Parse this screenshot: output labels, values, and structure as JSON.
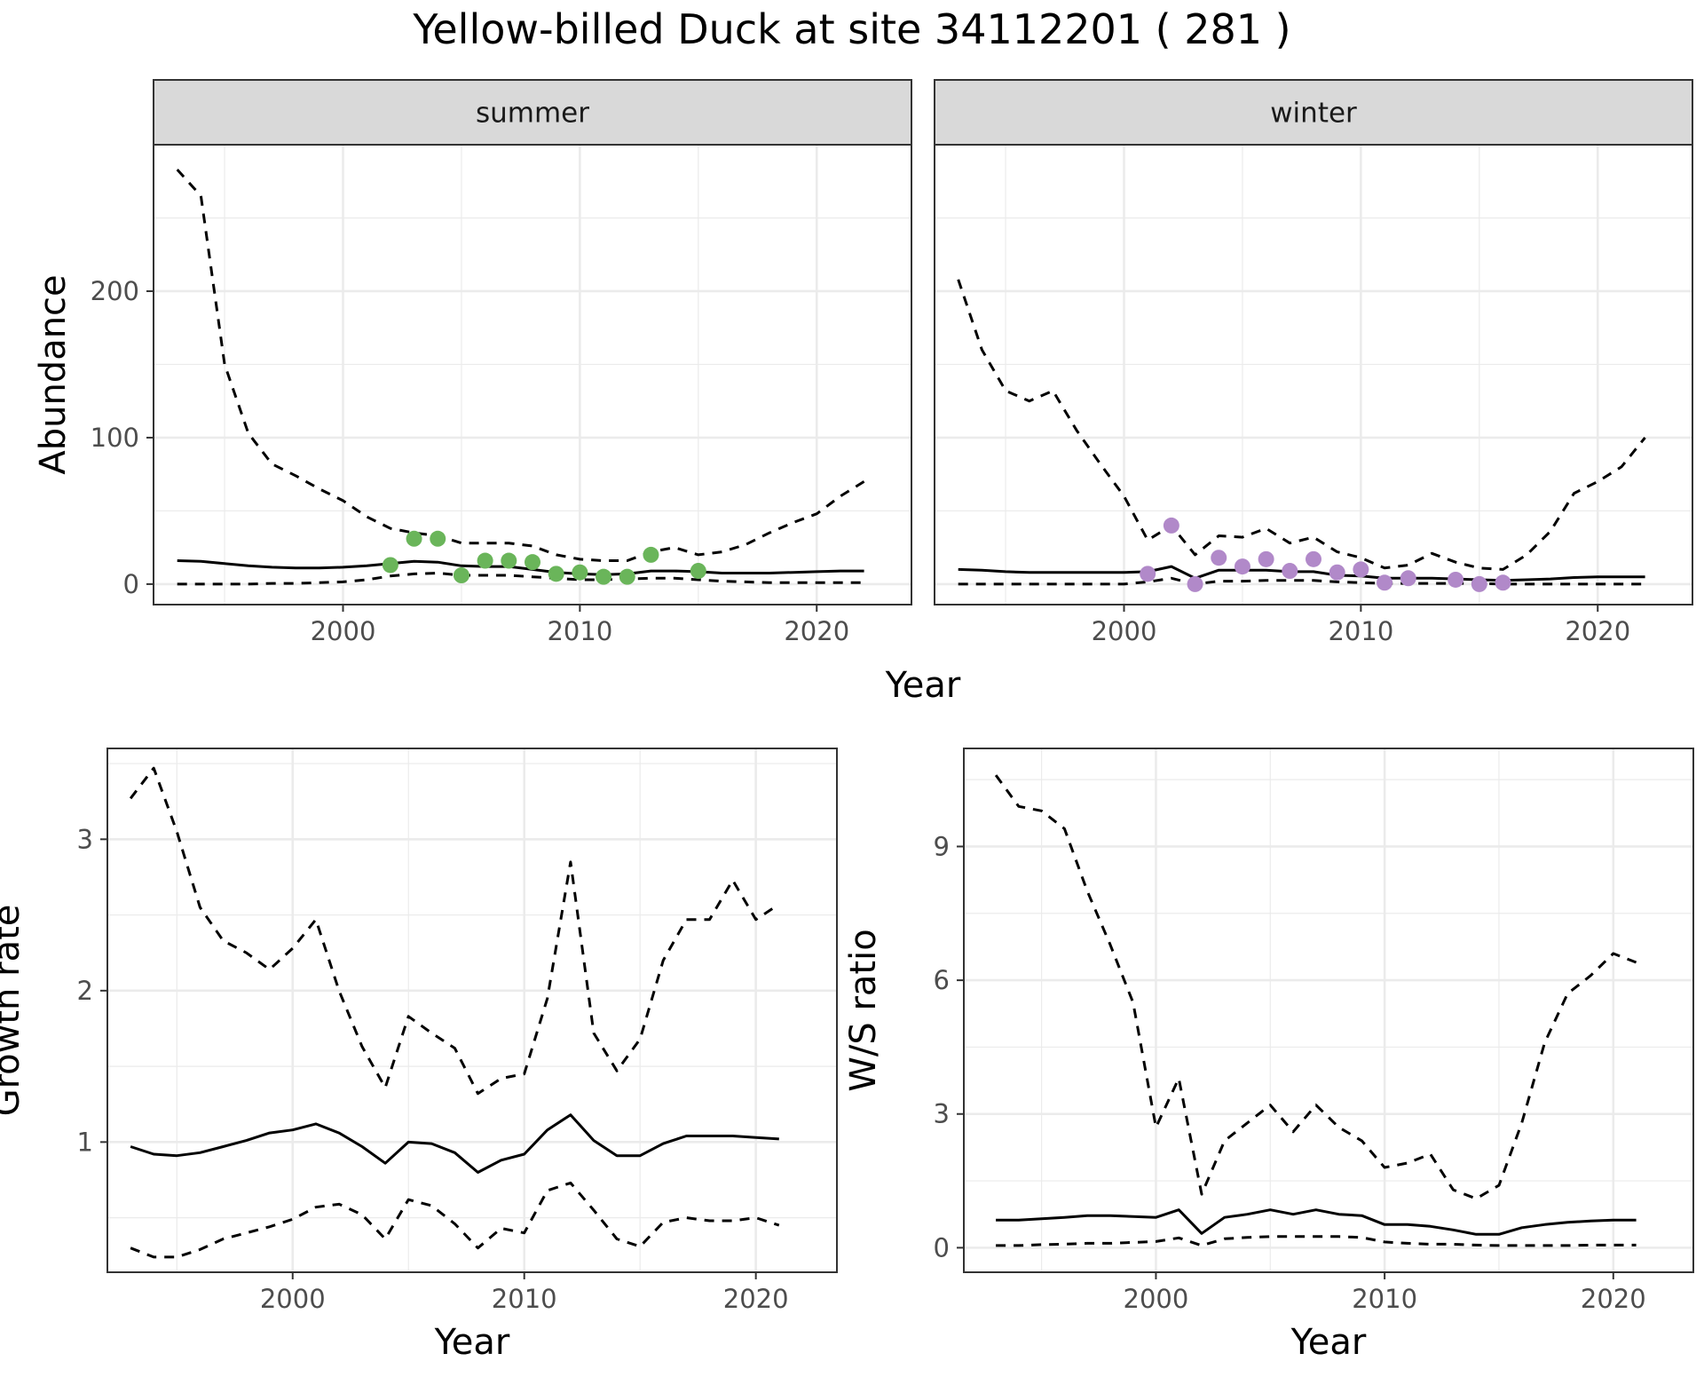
{
  "title": "Yellow-billed Duck at site 34112201 ( 281 )",
  "colors": {
    "summer_points": "#6ab55a",
    "winter_points": "#b189c9",
    "lines": "#000000",
    "strip_fill": "#d9d9d9",
    "grid": "#ebebeb"
  },
  "chart_data": [
    {
      "id": "abundance-summer",
      "type": "line",
      "facet_label": "summer",
      "xlabel": "Year",
      "ylabel": "Abundance",
      "xlim": [
        1992,
        2024
      ],
      "ylim": [
        -14,
        300
      ],
      "xticks": [
        2000,
        2010,
        2020
      ],
      "yticks": [
        0,
        100,
        200
      ],
      "grid": true,
      "series": [
        {
          "style": "solid",
          "x": [
            1993,
            1994,
            1995,
            1996,
            1997,
            1998,
            1999,
            2000,
            2001,
            2002,
            2003,
            2004,
            2005,
            2006,
            2007,
            2008,
            2009,
            2010,
            2011,
            2012,
            2013,
            2014,
            2015,
            2016,
            2017,
            2018,
            2019,
            2020,
            2021,
            2022
          ],
          "y": [
            16,
            15.5,
            14,
            12.5,
            11.5,
            11,
            11,
            11.5,
            12.5,
            14,
            15.5,
            15,
            12.5,
            12,
            12,
            10,
            8,
            7,
            6.5,
            7,
            9,
            9,
            8.5,
            7.5,
            7.5,
            7.5,
            8,
            8.5,
            9,
            9
          ]
        },
        {
          "style": "dashed",
          "x": [
            1993,
            1994,
            1995,
            1996,
            1997,
            1998,
            1999,
            2000,
            2001,
            2002,
            2003,
            2004,
            2005,
            2006,
            2007,
            2008,
            2009,
            2010,
            2011,
            2012,
            2013,
            2014,
            2015,
            2016,
            2017,
            2018,
            2019,
            2020,
            2021,
            2022
          ],
          "y": [
            283,
            265,
            150,
            103,
            82,
            74,
            65,
            57,
            46,
            38,
            35,
            33,
            28,
            28,
            28,
            26,
            20,
            17,
            16,
            16,
            22,
            25,
            20,
            22,
            27,
            35,
            42,
            48,
            60,
            70
          ]
        },
        {
          "style": "dashed",
          "x": [
            1993,
            1994,
            1995,
            1996,
            1997,
            1998,
            1999,
            2000,
            2001,
            2002,
            2003,
            2004,
            2005,
            2006,
            2007,
            2008,
            2009,
            2010,
            2011,
            2012,
            2013,
            2014,
            2015,
            2016,
            2017,
            2018,
            2019,
            2020,
            2021,
            2022
          ],
          "y": [
            0,
            0,
            0,
            0,
            0.5,
            0.5,
            1,
            1.5,
            3,
            5.5,
            7,
            7.5,
            6,
            6,
            6,
            5,
            4,
            3,
            3,
            3.5,
            4,
            4,
            3,
            2,
            1.5,
            1,
            1,
            1,
            1,
            1
          ]
        }
      ],
      "points": {
        "x": [
          2002,
          2003,
          2004,
          2005,
          2006,
          2007,
          2008,
          2009,
          2010,
          2011,
          2012,
          2013,
          2015
        ],
        "y": [
          13,
          31,
          31,
          6,
          16,
          16,
          15,
          7,
          8,
          5,
          5,
          20,
          9
        ]
      }
    },
    {
      "id": "abundance-winter",
      "type": "line",
      "facet_label": "winter",
      "xlabel": "Year",
      "ylabel": "",
      "xlim": [
        1992,
        2024
      ],
      "ylim": [
        -14,
        300
      ],
      "xticks": [
        2000,
        2010,
        2020
      ],
      "yticks": [
        0,
        100,
        200
      ],
      "grid": true,
      "series": [
        {
          "style": "solid",
          "x": [
            1993,
            1994,
            1995,
            1996,
            1997,
            1998,
            1999,
            2000,
            2001,
            2002,
            2003,
            2004,
            2005,
            2006,
            2007,
            2008,
            2009,
            2010,
            2011,
            2012,
            2013,
            2014,
            2015,
            2016,
            2017,
            2018,
            2019,
            2020,
            2021,
            2022
          ],
          "y": [
            10,
            9.5,
            8.5,
            8,
            8,
            8,
            8,
            8,
            8.5,
            12,
            4,
            9.5,
            9.5,
            9.5,
            8.5,
            8.5,
            6,
            5.5,
            4,
            4,
            4,
            3.5,
            3,
            2.5,
            3,
            3.5,
            4.5,
            5,
            5,
            5
          ]
        },
        {
          "style": "dashed",
          "x": [
            1993,
            1994,
            1995,
            1996,
            1997,
            1998,
            1999,
            2000,
            2001,
            2002,
            2003,
            2004,
            2005,
            2006,
            2007,
            2008,
            2009,
            2010,
            2011,
            2012,
            2013,
            2014,
            2015,
            2016,
            2017,
            2018,
            2019,
            2020,
            2021,
            2022
          ],
          "y": [
            208,
            160,
            132,
            125,
            132,
            105,
            82,
            60,
            30,
            40,
            20,
            33,
            32,
            38,
            28,
            32,
            22,
            18,
            11,
            13,
            21,
            15,
            11,
            10,
            20,
            36,
            62,
            70,
            80,
            100
          ]
        },
        {
          "style": "dashed",
          "x": [
            1993,
            1994,
            1995,
            1996,
            1997,
            1998,
            1999,
            2000,
            2001,
            2002,
            2003,
            2004,
            2005,
            2006,
            2007,
            2008,
            2009,
            2010,
            2011,
            2012,
            2013,
            2014,
            2015,
            2016,
            2017,
            2018,
            2019,
            2020,
            2021,
            2022
          ],
          "y": [
            0,
            0,
            0,
            0,
            0,
            0,
            0,
            0,
            1.5,
            4,
            0,
            2,
            2,
            2.5,
            2.5,
            2.5,
            1.5,
            1,
            0.5,
            0.5,
            0.5,
            0.5,
            0.5,
            0,
            0,
            0,
            0,
            0,
            0,
            0
          ]
        }
      ],
      "points": {
        "x": [
          2001,
          2002,
          2003,
          2004,
          2005,
          2006,
          2007,
          2008,
          2009,
          2010,
          2011,
          2012,
          2014,
          2015,
          2016
        ],
        "y": [
          7,
          40,
          0,
          18,
          12,
          17,
          9,
          17,
          8,
          10,
          1,
          4,
          3,
          0,
          1
        ]
      }
    },
    {
      "id": "growth-rate",
      "type": "line",
      "xlabel": "Year",
      "ylabel": "Growth rate",
      "xlim": [
        1992,
        2023.5
      ],
      "ylim": [
        0.14,
        3.6
      ],
      "xticks": [
        2000,
        2010,
        2020
      ],
      "yticks": [
        1,
        2,
        3
      ],
      "grid": true,
      "series": [
        {
          "style": "solid",
          "x": [
            1993,
            1994,
            1995,
            1996,
            1997,
            1998,
            1999,
            2000,
            2001,
            2002,
            2003,
            2004,
            2005,
            2006,
            2007,
            2008,
            2009,
            2010,
            2011,
            2012,
            2013,
            2014,
            2015,
            2016,
            2017,
            2018,
            2019,
            2020,
            2021
          ],
          "y": [
            0.97,
            0.92,
            0.91,
            0.93,
            0.97,
            1.01,
            1.06,
            1.08,
            1.12,
            1.06,
            0.97,
            0.86,
            1.0,
            0.99,
            0.93,
            0.8,
            0.88,
            0.92,
            1.08,
            1.18,
            1.01,
            0.91,
            0.91,
            0.99,
            1.04,
            1.04,
            1.04,
            1.03,
            1.02
          ]
        },
        {
          "style": "dashed",
          "x": [
            1993,
            1994,
            1995,
            1996,
            1997,
            1998,
            1999,
            2000,
            2001,
            2002,
            2003,
            2004,
            2005,
            2006,
            2007,
            2008,
            2009,
            2010,
            2011,
            2012,
            2013,
            2014,
            2015,
            2016,
            2017,
            2018,
            2019,
            2020,
            2021
          ],
          "y": [
            3.27,
            3.47,
            3.05,
            2.55,
            2.33,
            2.25,
            2.14,
            2.28,
            2.47,
            2.0,
            1.63,
            1.36,
            1.83,
            1.72,
            1.62,
            1.32,
            1.42,
            1.45,
            1.95,
            2.85,
            1.72,
            1.47,
            1.68,
            2.2,
            2.47,
            2.47,
            2.73,
            2.47,
            2.57
          ]
        },
        {
          "style": "dashed",
          "x": [
            1993,
            1994,
            1995,
            1996,
            1997,
            1998,
            1999,
            2000,
            2001,
            2002,
            2003,
            2004,
            2005,
            2006,
            2007,
            2008,
            2009,
            2010,
            2011,
            2012,
            2013,
            2014,
            2015,
            2016,
            2017,
            2018,
            2019,
            2020,
            2021
          ],
          "y": [
            0.3,
            0.24,
            0.24,
            0.29,
            0.36,
            0.4,
            0.44,
            0.49,
            0.57,
            0.59,
            0.52,
            0.36,
            0.62,
            0.58,
            0.46,
            0.3,
            0.43,
            0.4,
            0.68,
            0.73,
            0.55,
            0.36,
            0.31,
            0.47,
            0.5,
            0.48,
            0.48,
            0.5,
            0.45
          ]
        }
      ]
    },
    {
      "id": "ws-ratio",
      "type": "line",
      "xlabel": "Year",
      "ylabel": "W/S ratio",
      "xlim": [
        1991.6,
        2023.5
      ],
      "ylim": [
        -0.55,
        11.2
      ],
      "xticks": [
        2000,
        2010,
        2020
      ],
      "yticks": [
        0,
        3,
        6,
        9
      ],
      "grid": true,
      "series": [
        {
          "style": "solid",
          "x": [
            1993,
            1994,
            1995,
            1996,
            1997,
            1998,
            1999,
            2000,
            2001,
            2002,
            2003,
            2004,
            2005,
            2006,
            2007,
            2008,
            2009,
            2010,
            2011,
            2012,
            2013,
            2014,
            2015,
            2016,
            2017,
            2018,
            2019,
            2020,
            2021
          ],
          "y": [
            0.62,
            0.62,
            0.65,
            0.68,
            0.72,
            0.72,
            0.7,
            0.68,
            0.85,
            0.32,
            0.68,
            0.75,
            0.85,
            0.75,
            0.85,
            0.75,
            0.72,
            0.52,
            0.52,
            0.48,
            0.4,
            0.3,
            0.3,
            0.45,
            0.52,
            0.57,
            0.6,
            0.62,
            0.62
          ]
        },
        {
          "style": "dashed",
          "x": [
            1993,
            1994,
            1995,
            1996,
            1997,
            1998,
            1999,
            2000,
            2001,
            2002,
            2003,
            2004,
            2005,
            2006,
            2007,
            2008,
            2009,
            2010,
            2011,
            2012,
            2013,
            2014,
            2015,
            2016,
            2017,
            2018,
            2019,
            2020,
            2021
          ],
          "y": [
            10.6,
            9.9,
            9.8,
            9.4,
            8.0,
            6.8,
            5.5,
            2.7,
            3.8,
            1.2,
            2.4,
            2.8,
            3.2,
            2.6,
            3.2,
            2.7,
            2.4,
            1.8,
            1.9,
            2.1,
            1.3,
            1.1,
            1.4,
            2.8,
            4.6,
            5.7,
            6.1,
            6.6,
            6.4
          ]
        },
        {
          "style": "dashed",
          "x": [
            1993,
            1994,
            1995,
            1996,
            1997,
            1998,
            1999,
            2000,
            2001,
            2002,
            2003,
            2004,
            2005,
            2006,
            2007,
            2008,
            2009,
            2010,
            2011,
            2012,
            2013,
            2014,
            2015,
            2016,
            2017,
            2018,
            2019,
            2020,
            2021
          ],
          "y": [
            0.05,
            0.05,
            0.07,
            0.08,
            0.1,
            0.1,
            0.12,
            0.14,
            0.22,
            0.05,
            0.2,
            0.23,
            0.25,
            0.25,
            0.25,
            0.25,
            0.23,
            0.13,
            0.1,
            0.08,
            0.08,
            0.06,
            0.05,
            0.05,
            0.05,
            0.05,
            0.06,
            0.06,
            0.06
          ]
        }
      ]
    }
  ]
}
